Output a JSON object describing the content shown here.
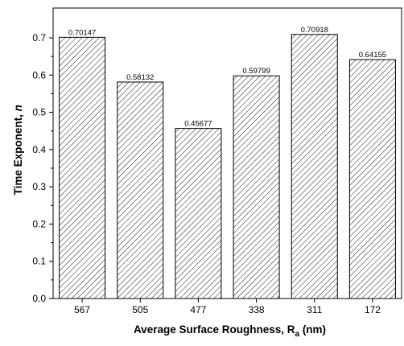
{
  "chart_data": {
    "type": "bar",
    "categories": [
      "567",
      "505",
      "477",
      "338",
      "311",
      "172"
    ],
    "values": [
      0.70147,
      0.58132,
      0.45677,
      0.59799,
      0.70918,
      0.64155
    ],
    "labels": [
      "0.70147",
      "0.58132",
      "0.45677",
      "0.59799",
      "0.70918",
      "0.64155"
    ],
    "ylim": [
      0,
      0.78
    ],
    "yticks": [
      "0.0",
      "0.1",
      "0.2",
      "0.3",
      "0.4",
      "0.5",
      "0.6",
      "0.7"
    ],
    "xlabel": {
      "text": "Average Surface Roughness, R",
      "subscript": "a",
      "suffix": " (nm)"
    },
    "ylabel": {
      "text": "Time Exponent, ",
      "italic": "n"
    },
    "grid": false,
    "colors": {
      "line": "#000000",
      "bar_fill": "#ffffff",
      "hatch": "#000000",
      "background": "#ffffff"
    }
  }
}
